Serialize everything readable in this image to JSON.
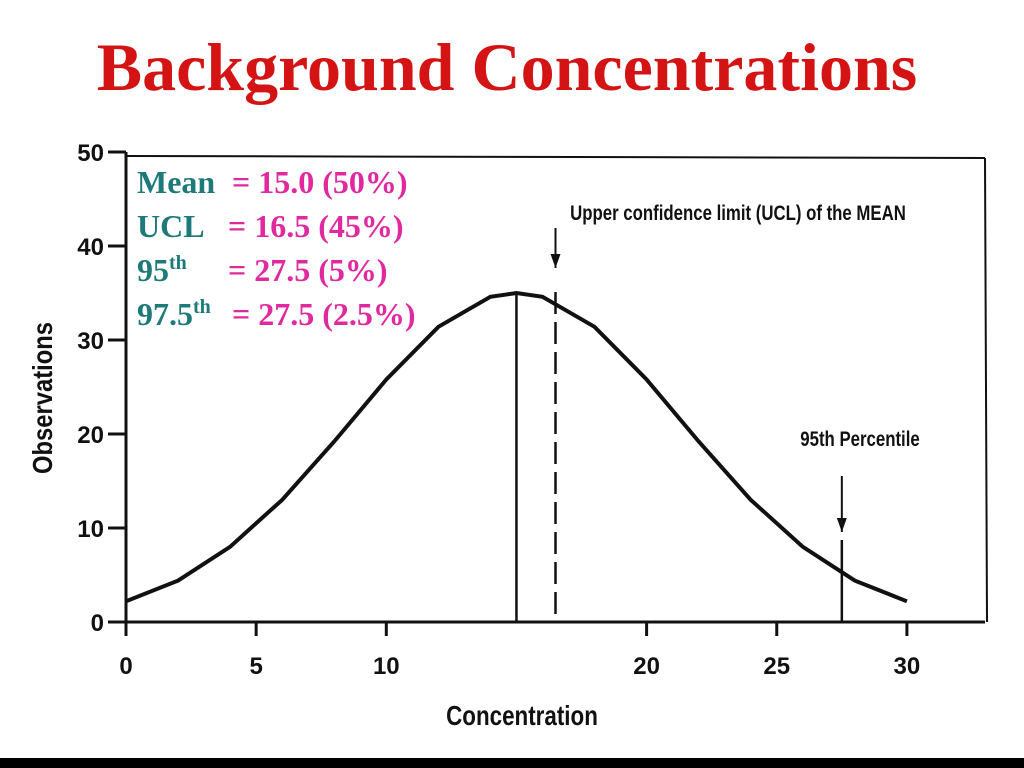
{
  "chart_data": {
    "type": "line",
    "title": "Background Concentrations",
    "xlabel": "Concentration",
    "ylabel": "Observations",
    "x": [
      0,
      2,
      4,
      6,
      8,
      10,
      12,
      14,
      15,
      16,
      18,
      20,
      22,
      24,
      26,
      28,
      30
    ],
    "values": [
      2.2,
      4.4,
      8.0,
      13.0,
      19.2,
      25.8,
      31.4,
      34.6,
      35,
      34.6,
      31.4,
      25.8,
      19.2,
      13.0,
      8.0,
      4.4,
      2.2
    ],
    "color": "#111111",
    "xlim": [
      0,
      33
    ],
    "xticks": [
      0,
      5,
      10,
      20,
      25,
      30
    ],
    "ylim": [
      0,
      50
    ],
    "yticks": [
      0,
      10,
      20,
      30,
      40,
      50
    ],
    "reference_lines": [
      {
        "x": 15,
        "style": "solid"
      },
      {
        "x": 16.5,
        "style": "dashed",
        "label": "Upper confidence limit (UCL) of the MEAN"
      },
      {
        "x": 27.5,
        "style": "solid",
        "label": "95th Percentile"
      }
    ],
    "stats": [
      {
        "label": "Mean",
        "value": "= 15.0 (50%)"
      },
      {
        "label": "UCL",
        "value": "= 16.5 (45%)"
      },
      {
        "label": "95",
        "sup": "th",
        "value": "= 27.5 (5%)"
      },
      {
        "label": "97.5",
        "sup": "th",
        "value": "= 27.5 (2.5%)"
      }
    ]
  }
}
